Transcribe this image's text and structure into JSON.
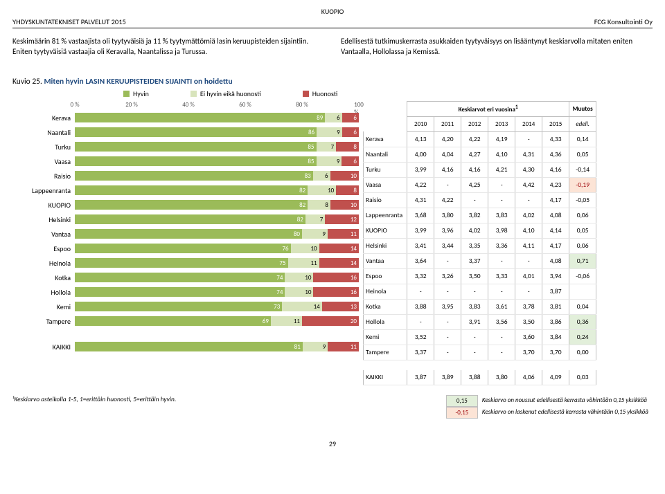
{
  "header": {
    "center": "KUOPIO",
    "left": "YHDYSKUNTATEKNISET PALVELUT 2015",
    "right": "FCG Konsultointi Oy"
  },
  "intro": {
    "left": "Keskimäärin  81 % vastaajista oli tyytyväisiä ja 11 % tyytymättömiä lasin keruupisteiden sijaintiin. Eniten tyytyväisiä vastaajia oli Keravalla, Naantalissa ja Turussa.",
    "right": "Edellisestä tutkimuskerrasta asukkaiden tyytyväisyys on lisääntynyt keskiarvolla mitaten eniten Vantaalla, Hollolassa ja Kemissä."
  },
  "kuvio": {
    "prefix": "Kuvio 25. ",
    "title": "Miten hyvin LASIN KERUUPISTEIDEN SIJAINTI on hoidettu"
  },
  "legend": [
    {
      "label": "Hyvin",
      "color": "#9bbb59"
    },
    {
      "label": "Ei hyvin eikä huonosti",
      "color": "#d8e4bc"
    },
    {
      "label": "Huonosti",
      "color": "#c0504d"
    }
  ],
  "chart": {
    "axis": [
      "0 %",
      "20 %",
      "40 %",
      "60 %",
      "80 %",
      "100 %"
    ],
    "seg_colors": [
      "#9bbb59",
      "#d8e4bc",
      "#c0504d"
    ],
    "seg_text_colors": [
      "#ffffff",
      "#000000",
      "#ffffff"
    ],
    "rows": [
      {
        "label": "Kerava",
        "vals": [
          89,
          6,
          6
        ]
      },
      {
        "label": "Naantali",
        "vals": [
          86,
          9,
          6
        ]
      },
      {
        "label": "Turku",
        "vals": [
          85,
          7,
          8
        ]
      },
      {
        "label": "Vaasa",
        "vals": [
          85,
          9,
          6
        ]
      },
      {
        "label": "Raisio",
        "vals": [
          83,
          6,
          10
        ]
      },
      {
        "label": "Lappeenranta",
        "vals": [
          82,
          10,
          8
        ]
      },
      {
        "label": "KUOPIO",
        "vals": [
          82,
          8,
          10
        ]
      },
      {
        "label": "Helsinki",
        "vals": [
          82,
          7,
          12
        ]
      },
      {
        "label": "Vantaa",
        "vals": [
          80,
          9,
          11
        ]
      },
      {
        "label": "Espoo",
        "vals": [
          76,
          10,
          14
        ]
      },
      {
        "label": "Heinola",
        "vals": [
          75,
          11,
          14
        ]
      },
      {
        "label": "Kotka",
        "vals": [
          74,
          10,
          16
        ]
      },
      {
        "label": "Hollola",
        "vals": [
          74,
          10,
          16
        ]
      },
      {
        "label": "Kemi",
        "vals": [
          73,
          14,
          13
        ]
      },
      {
        "label": "Tampere",
        "vals": [
          69,
          11,
          20
        ]
      }
    ],
    "kaikki": {
      "label": "KAIKKI",
      "vals": [
        81,
        9,
        11
      ]
    }
  },
  "table": {
    "header1": "Keskiarvot eri vuosina",
    "header1_sup": "1",
    "header2": "Muutos",
    "years": [
      "2010",
      "2011",
      "2012",
      "2013",
      "2014",
      "2015"
    ],
    "muutos_head": "edell.",
    "rows": [
      {
        "label": "Kerava",
        "cells": [
          "4,13",
          "4,20",
          "4,22",
          "4,19",
          "-",
          "4,33"
        ],
        "muutos": "0,14",
        "hl": ""
      },
      {
        "label": "Naantali",
        "cells": [
          "4,00",
          "4,04",
          "4,27",
          "4,10",
          "4,31",
          "4,36"
        ],
        "muutos": "0,05",
        "hl": ""
      },
      {
        "label": "Turku",
        "cells": [
          "3,99",
          "4,16",
          "4,16",
          "4,21",
          "4,30",
          "4,16"
        ],
        "muutos": "-0,14",
        "hl": ""
      },
      {
        "label": "Vaasa",
        "cells": [
          "4,22",
          "-",
          "4,25",
          "-",
          "4,42",
          "4,23"
        ],
        "muutos": "-0,19",
        "hl": "red"
      },
      {
        "label": "Raisio",
        "cells": [
          "4,31",
          "4,22",
          "-",
          "-",
          "-",
          "4,17"
        ],
        "muutos": "-0,05",
        "hl": ""
      },
      {
        "label": "Lappeenranta",
        "cells": [
          "3,68",
          "3,80",
          "3,82",
          "3,83",
          "4,02",
          "4,08"
        ],
        "muutos": "0,06",
        "hl": ""
      },
      {
        "label": "KUOPIO",
        "cells": [
          "3,99",
          "3,96",
          "4,02",
          "3,98",
          "4,10",
          "4,14"
        ],
        "muutos": "0,05",
        "hl": ""
      },
      {
        "label": "Helsinki",
        "cells": [
          "3,41",
          "3,44",
          "3,35",
          "3,36",
          "4,11",
          "4,17"
        ],
        "muutos": "0,06",
        "hl": ""
      },
      {
        "label": "Vantaa",
        "cells": [
          "3,64",
          "-",
          "3,37",
          "-",
          "-",
          "4,08"
        ],
        "muutos": "0,71",
        "hl": "green"
      },
      {
        "label": "Espoo",
        "cells": [
          "3,32",
          "3,26",
          "3,50",
          "3,33",
          "4,01",
          "3,94"
        ],
        "muutos": "-0,06",
        "hl": ""
      },
      {
        "label": "Heinola",
        "cells": [
          "-",
          "-",
          "-",
          "-",
          "-",
          "3,87"
        ],
        "muutos": "",
        "hl": ""
      },
      {
        "label": "Kotka",
        "cells": [
          "3,88",
          "3,95",
          "3,83",
          "3,61",
          "3,78",
          "3,81"
        ],
        "muutos": "0,04",
        "hl": ""
      },
      {
        "label": "Hollola",
        "cells": [
          "-",
          "-",
          "3,91",
          "3,56",
          "3,50",
          "3,86"
        ],
        "muutos": "0,36",
        "hl": "green"
      },
      {
        "label": "Kemi",
        "cells": [
          "3,52",
          "-",
          "-",
          "-",
          "3,60",
          "3,84"
        ],
        "muutos": "0,24",
        "hl": "green"
      },
      {
        "label": "Tampere",
        "cells": [
          "3,37",
          "-",
          "-",
          "-",
          "3,70",
          "3,70"
        ],
        "muutos": "0,00",
        "hl": ""
      }
    ],
    "kaikki": {
      "label": "KAIKKI",
      "cells": [
        "3,87",
        "3,89",
        "3,88",
        "3,80",
        "4,06",
        "4,09"
      ],
      "muutos": "0,03",
      "hl": ""
    }
  },
  "footnote": {
    "left": "¹Keskiarvo asteikolla 1-5, 1=erittäin huonosti, 5=erittäin hyvin.",
    "rows": [
      {
        "val": "0,15",
        "cls": "hl-green",
        "text": "Keskiarvo on noussut edellisestä kerrasta vähintään 0,15 yksikköä"
      },
      {
        "val": "-0,15",
        "cls": "hl-red",
        "text": "Keskiarvo on laskenut edellisestä kerrasta vähintään 0,15 yksikköä"
      }
    ]
  },
  "page_number": "29"
}
